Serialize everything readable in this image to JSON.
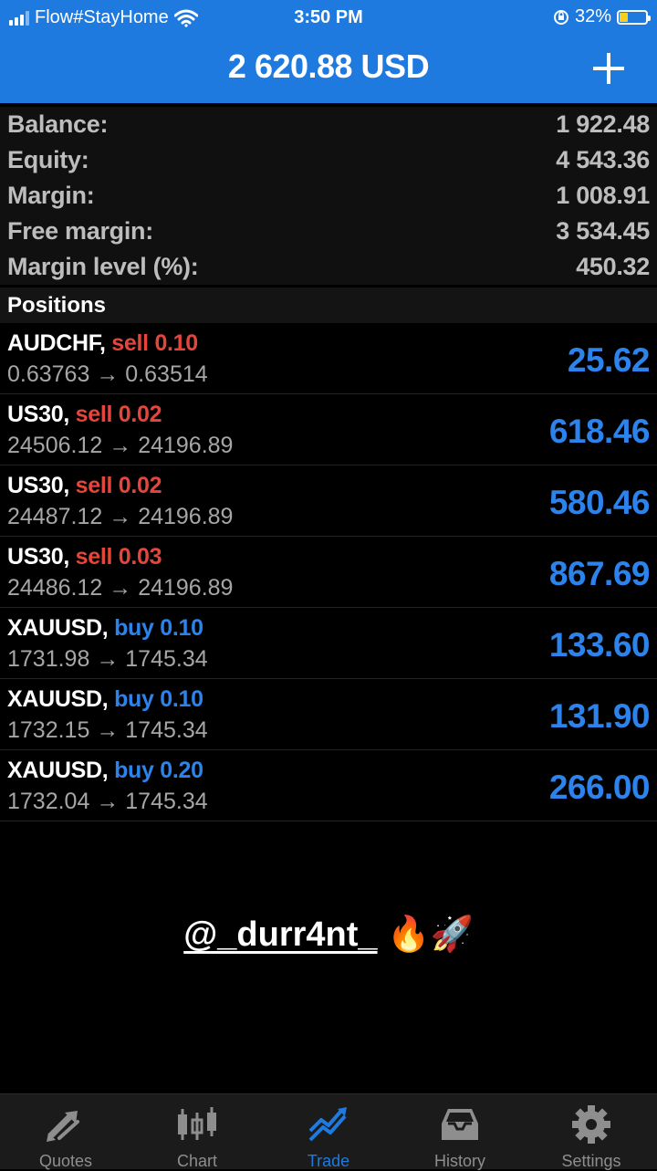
{
  "status_bar": {
    "carrier": "Flow#StayHome",
    "time": "3:50 PM",
    "battery": "32%"
  },
  "header": {
    "title": "2 620.88 USD"
  },
  "summary": [
    {
      "label": "Balance:",
      "value": "1 922.48"
    },
    {
      "label": "Equity:",
      "value": "4 543.36"
    },
    {
      "label": "Margin:",
      "value": "1 008.91"
    },
    {
      "label": "Free margin:",
      "value": "3 534.45"
    },
    {
      "label": "Margin level (%):",
      "value": "450.32"
    }
  ],
  "positions_header": "Positions",
  "positions": [
    {
      "symbol": "AUDCHF,",
      "type": "sell",
      "volume": "0.10",
      "open": "0.63763",
      "current": "0.63514",
      "profit": "25.62"
    },
    {
      "symbol": "US30,",
      "type": "sell",
      "volume": "0.02",
      "open": "24506.12",
      "current": "24196.89",
      "profit": "618.46"
    },
    {
      "symbol": "US30,",
      "type": "sell",
      "volume": "0.02",
      "open": "24487.12",
      "current": "24196.89",
      "profit": "580.46"
    },
    {
      "symbol": "US30,",
      "type": "sell",
      "volume": "0.03",
      "open": "24486.12",
      "current": "24196.89",
      "profit": "867.69"
    },
    {
      "symbol": "XAUUSD,",
      "type": "buy",
      "volume": "0.10",
      "open": "1731.98",
      "current": "1745.34",
      "profit": "133.60"
    },
    {
      "symbol": "XAUUSD,",
      "type": "buy",
      "volume": "0.10",
      "open": "1732.15",
      "current": "1745.34",
      "profit": "131.90"
    },
    {
      "symbol": "XAUUSD,",
      "type": "buy",
      "volume": "0.20",
      "open": "1732.04",
      "current": "1745.34",
      "profit": "266.00"
    }
  ],
  "watermark": {
    "handle": "@_durr4nt_",
    "emoji": "🔥🚀"
  },
  "tabs": [
    {
      "label": "Quotes",
      "icon": "quotes-arrows-icon",
      "active": false
    },
    {
      "label": "Chart",
      "icon": "candlestick-chart-icon",
      "active": false
    },
    {
      "label": "Trade",
      "icon": "trade-trend-icon",
      "active": true
    },
    {
      "label": "History",
      "icon": "inbox-tray-icon",
      "active": false
    },
    {
      "label": "Settings",
      "icon": "gear-icon",
      "active": false
    }
  ],
  "colors": {
    "header_blue": "#1f7ae0",
    "sell_red": "#e4463b",
    "buy_blue": "#2c83ec",
    "background": "#000000"
  }
}
